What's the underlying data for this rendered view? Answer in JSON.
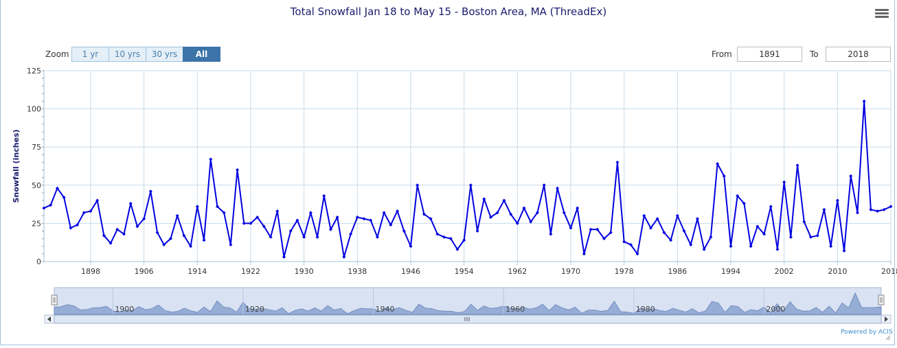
{
  "title": "Total Snowfall Jan 18 to May 15 - Boston Area, MA (ThreadEx)",
  "menu_icon": "hamburger-menu-icon",
  "zoom": {
    "label": "Zoom",
    "buttons": [
      "1 yr",
      "10 yrs",
      "30 yrs",
      "All"
    ],
    "active": "All"
  },
  "range": {
    "from_label": "From",
    "from_value": "1891",
    "to_label": "To",
    "to_value": "2018"
  },
  "credit": "Powered by ACIS",
  "colors": {
    "line": "#0000e0",
    "grid": "#c5dcec",
    "navigator_fill": "#8fa8d4",
    "navigator_bg": "#d8e2f2"
  },
  "chart_data": {
    "type": "line",
    "ylabel": "Snowfall (inches)",
    "xlabel": "",
    "ylim": [
      0,
      125
    ],
    "xlim": [
      1891,
      2018
    ],
    "yticks": [
      0,
      25,
      50,
      75,
      100,
      125
    ],
    "xticks": [
      1898,
      1906,
      1914,
      1922,
      1930,
      1938,
      1946,
      1954,
      1962,
      1970,
      1978,
      1986,
      1994,
      2002,
      2010,
      2018
    ],
    "grid": true,
    "legend": "none",
    "navigator_labels": [
      "1900",
      "1920",
      "1940",
      "1960",
      "1980",
      "2000"
    ],
    "series": [
      {
        "x": [
          1891,
          1892,
          1893,
          1894,
          1895,
          1896,
          1897,
          1898,
          1899,
          1900,
          1901,
          1902,
          1903,
          1904,
          1905,
          1906,
          1907,
          1908,
          1909,
          1910,
          1911,
          1912,
          1913,
          1914,
          1915,
          1916,
          1917,
          1918,
          1919,
          1920,
          1921,
          1922,
          1923,
          1924,
          1925,
          1926,
          1927,
          1928,
          1929,
          1930,
          1931,
          1932,
          1933,
          1934,
          1935,
          1936,
          1937,
          1938,
          1939,
          1940,
          1941,
          1942,
          1943,
          1944,
          1945,
          1946,
          1947,
          1948,
          1949,
          1950,
          1951,
          1952,
          1953,
          1954,
          1955,
          1956,
          1957,
          1958,
          1959,
          1960,
          1961,
          1962,
          1963,
          1964,
          1965,
          1966,
          1967,
          1968,
          1969,
          1970,
          1971,
          1972,
          1973,
          1974,
          1975,
          1976,
          1977,
          1978,
          1979,
          1980,
          1981,
          1982,
          1983,
          1984,
          1985,
          1986,
          1987,
          1988,
          1989,
          1990,
          1991,
          1992,
          1993,
          1994,
          1995,
          1996,
          1997,
          1998,
          1999,
          2000,
          2001,
          2002,
          2003,
          2004,
          2005,
          2006,
          2007,
          2008,
          2009,
          2010,
          2011,
          2012,
          2013,
          2014,
          2015,
          2016,
          2017,
          2018
        ],
        "values": [
          35,
          37,
          48,
          42,
          22,
          24,
          32,
          33,
          40,
          17,
          12,
          21,
          18,
          38,
          23,
          28,
          46,
          19,
          11,
          15,
          30,
          17,
          10,
          36,
          14,
          67,
          36,
          32,
          11,
          60,
          25,
          25,
          29,
          23,
          16,
          33,
          3,
          20,
          27,
          16,
          32,
          16,
          43,
          21,
          29,
          3,
          18,
          29,
          28,
          27,
          16,
          32,
          24,
          33,
          20,
          10,
          50,
          31,
          28,
          18,
          16,
          15,
          8,
          14,
          50,
          20,
          41,
          29,
          32,
          40,
          31,
          25,
          35,
          26,
          32,
          50,
          18,
          48,
          32,
          22,
          35,
          5,
          21,
          21,
          15,
          19,
          65,
          13,
          11,
          5,
          30,
          22,
          28,
          19,
          14,
          30,
          20,
          11,
          28,
          8,
          16,
          64,
          56,
          10,
          43,
          38,
          10,
          23,
          18,
          36,
          8,
          52,
          16,
          63,
          26,
          16,
          17,
          34,
          10,
          40,
          7,
          56,
          32,
          105,
          34,
          33,
          34,
          36
        ]
      }
    ]
  }
}
